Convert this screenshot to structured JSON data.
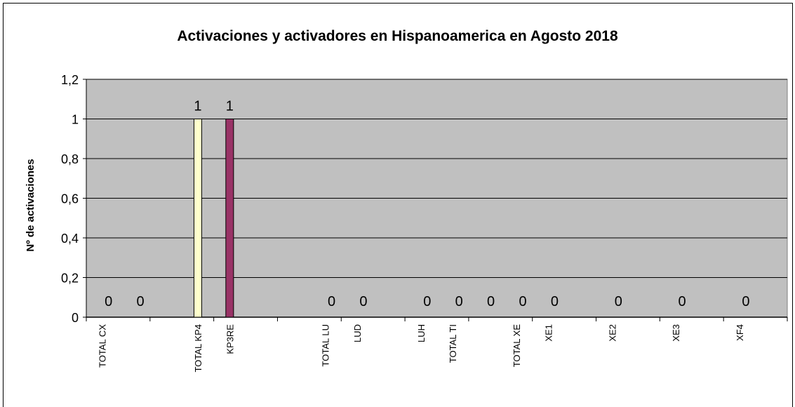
{
  "chart_data": {
    "type": "bar",
    "title": "Activaciones y activadores en Hispanoamerica en Agosto 2018",
    "ylabel": "Nº de activaciones",
    "xlabel": "",
    "ylim": [
      0,
      1.2
    ],
    "yticks": [
      "0",
      "0,2",
      "0,4",
      "0,6",
      "0,8",
      "1",
      "1,2"
    ],
    "grid": true,
    "legend": "none",
    "colors": {
      "plot_bg": "#c0c0c0",
      "grid": "#000000",
      "bar_kp4": "#ffffcc",
      "bar_kp3re": "#993366"
    },
    "slots": [
      "TOTAL CX",
      "",
      "",
      "TOTAL KP4",
      "KP3RE",
      "",
      "",
      "TOTAL LU",
      "LUD",
      "",
      "LUH",
      "TOTAL TI",
      "",
      "TOTAL XE",
      "XE1",
      "",
      "XE2",
      "",
      "XE3",
      "",
      "XF4",
      ""
    ],
    "bars": [
      {
        "category": "TOTAL KP4",
        "value": 1,
        "label": "1",
        "color": "#ffffcc"
      },
      {
        "category": "KP3RE",
        "value": 1,
        "label": "1",
        "color": "#993366"
      }
    ],
    "zero_labels": [
      "0",
      "0",
      "0",
      "0",
      "0",
      "0",
      "0",
      "0",
      "0",
      "0",
      "0",
      "0"
    ]
  }
}
